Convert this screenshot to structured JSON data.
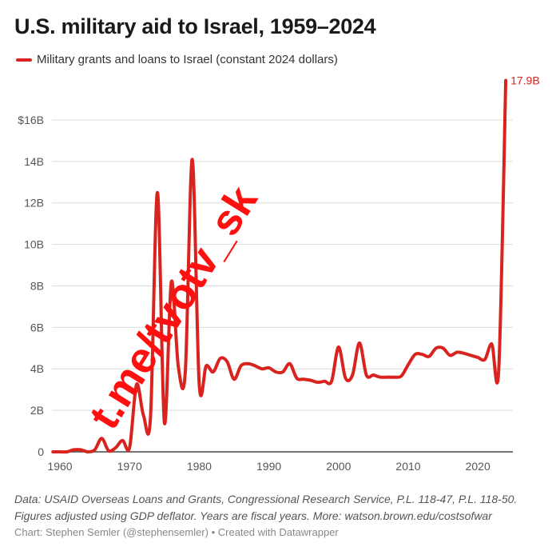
{
  "chart_data": {
    "type": "line",
    "title": "U.S. military aid to Israel, 1959–2024",
    "legend": "Military grants and loans to Israel (constant 2024 dollars)",
    "legend_placement": "top-left",
    "xlabel": "",
    "ylabel": "",
    "xlim": [
      1959,
      2024
    ],
    "ylim": [
      0,
      18
    ],
    "grid": true,
    "x_ticks": [
      "1960",
      "1970",
      "1980",
      "1990",
      "2000",
      "2010",
      "2020"
    ],
    "y_ticks": [
      {
        "v": 0,
        "label": "0"
      },
      {
        "v": 2,
        "label": "2B"
      },
      {
        "v": 4,
        "label": "4B"
      },
      {
        "v": 6,
        "label": "6B"
      },
      {
        "v": 8,
        "label": "8B"
      },
      {
        "v": 10,
        "label": "10B"
      },
      {
        "v": 12,
        "label": "12B"
      },
      {
        "v": 14,
        "label": "14B"
      },
      {
        "v": 16,
        "label": "$16B"
      }
    ],
    "series": [
      {
        "name": "Military grants and loans to Israel (constant 2024 dollars)",
        "color": "#d8231f",
        "x": [
          1959,
          1960,
          1961,
          1962,
          1963,
          1964,
          1965,
          1966,
          1967,
          1968,
          1969,
          1970,
          1971,
          1972,
          1973,
          1974,
          1975,
          1976,
          1977,
          1978,
          1979,
          1980,
          1981,
          1982,
          1983,
          1984,
          1985,
          1986,
          1987,
          1988,
          1989,
          1990,
          1991,
          1992,
          1993,
          1994,
          1995,
          1996,
          1997,
          1998,
          1999,
          2000,
          2001,
          2002,
          2003,
          2004,
          2005,
          2006,
          2007,
          2008,
          2009,
          2010,
          2011,
          2012,
          2013,
          2014,
          2015,
          2016,
          2017,
          2018,
          2019,
          2020,
          2021,
          2022,
          2023,
          2024
        ],
        "values": [
          0,
          0,
          0,
          0.1,
          0.1,
          0,
          0.1,
          0.65,
          0.05,
          0.2,
          0.55,
          0.2,
          3.25,
          1.75,
          1.65,
          12.5,
          1.4,
          8.2,
          4.1,
          3.85,
          14.1,
          3.25,
          4.15,
          3.85,
          4.5,
          4.35,
          3.5,
          4.15,
          4.25,
          4.15,
          4.0,
          4.05,
          3.85,
          3.85,
          4.25,
          3.55,
          3.5,
          3.45,
          3.35,
          3.4,
          3.4,
          5.05,
          3.55,
          3.7,
          5.25,
          3.7,
          3.7,
          3.6,
          3.6,
          3.6,
          3.65,
          4.2,
          4.7,
          4.7,
          4.6,
          5.0,
          5.0,
          4.65,
          4.8,
          4.75,
          4.65,
          4.55,
          4.45,
          5.2,
          4.0,
          17.9
        ]
      }
    ],
    "annotations": [
      {
        "x": 2024,
        "y": 17.9,
        "label": "17.9B"
      }
    ]
  },
  "notes": {
    "line1": "Data: USAID Overseas Loans and Grants, Congressional Research Service, P.L. 118-47, P.L. 118-50.",
    "line2": "Figures adjusted using GDP deflator. Years are fiscal years. More: watson.brown.edu/costsofwar",
    "credit": "Chart: Stephen Semler (@stephensemler) • Created with Datawrapper"
  },
  "watermark": "t.me/tvotv_sk"
}
